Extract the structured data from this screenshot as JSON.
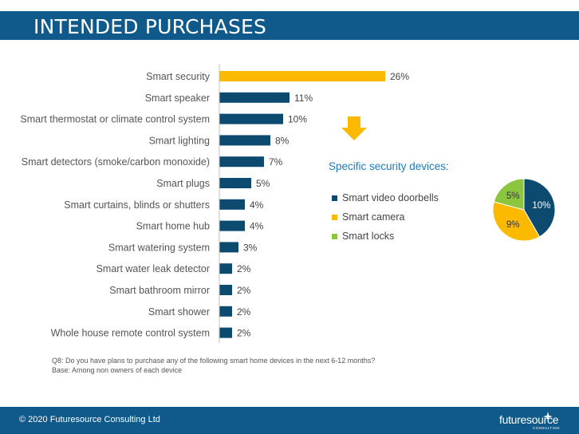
{
  "header": {
    "title": "INTENDED PURCHASES"
  },
  "chart_data": [
    {
      "type": "bar",
      "orientation": "horizontal",
      "categories": [
        "Smart security",
        "Smart speaker",
        "Smart thermostat or climate control system",
        "Smart lighting",
        "Smart detectors (smoke/carbon monoxide)",
        "Smart plugs",
        "Smart curtains, blinds or shutters",
        "Smart home hub",
        "Smart watering system",
        "Smart water leak detector",
        "Smart bathroom mirror",
        "Smart shower",
        "Whole house remote control system"
      ],
      "values": [
        26,
        11,
        10,
        8,
        7,
        5,
        4,
        4,
        3,
        2,
        2,
        2,
        2
      ],
      "value_labels": [
        "26%",
        "11%",
        "10%",
        "8%",
        "7%",
        "5%",
        "4%",
        "4%",
        "3%",
        "2%",
        "2%",
        "2%",
        "2%"
      ],
      "colors": [
        "#fbb900",
        "#0d4a70",
        "#0d4a70",
        "#0d4a70",
        "#0d4a70",
        "#0d4a70",
        "#0d4a70",
        "#0d4a70",
        "#0d4a70",
        "#0d4a70",
        "#0d4a70",
        "#0d4a70",
        "#0d4a70"
      ],
      "xlim": [
        0,
        26
      ]
    },
    {
      "type": "pie",
      "title": "Specific security devices:",
      "labels": [
        "Smart video doorbells",
        "Smart camera",
        "Smart locks"
      ],
      "values": [
        10,
        9,
        5
      ],
      "value_labels": [
        "10%",
        "9%",
        "5%"
      ],
      "colors": [
        "#0d4a70",
        "#fbb900",
        "#8cc63f"
      ]
    }
  ],
  "footnote": {
    "line1": "Q8: Do you have plans to purchase any of the following smart home devices in the next 6-12 months?",
    "line2": "Base: Among non owners of each device"
  },
  "footer": {
    "copyright": "© 2020 Futuresource Consulting Ltd",
    "logo_text": "futuresource",
    "logo_sub": "CONSULTING"
  },
  "icons": {
    "arrow": "down-arrow-icon",
    "logo_star": "star-icon"
  },
  "accent_colors": {
    "header": "#0f5a8a",
    "pie_title": "#1a7ac0",
    "arrow": "#fbb900"
  }
}
